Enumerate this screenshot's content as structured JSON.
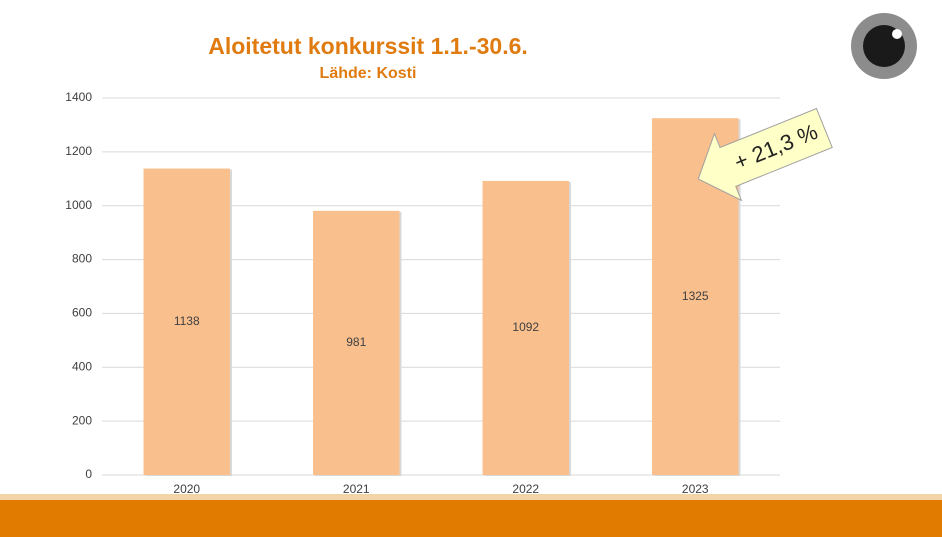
{
  "chart_data": {
    "type": "bar",
    "title": "Aloitetut konkurssit 1.1.-30.6.",
    "subtitle": "Lähde: Kosti",
    "annotation": "+ 21,3 %",
    "categories": [
      "2020",
      "2021",
      "2022",
      "2023"
    ],
    "values": [
      1138,
      981,
      1092,
      1325
    ],
    "color": "#f9c08e",
    "ylim": [
      0,
      1400
    ],
    "yticks": [
      0,
      200,
      400,
      600,
      800,
      1000,
      1200,
      1400
    ],
    "grid": true
  }
}
